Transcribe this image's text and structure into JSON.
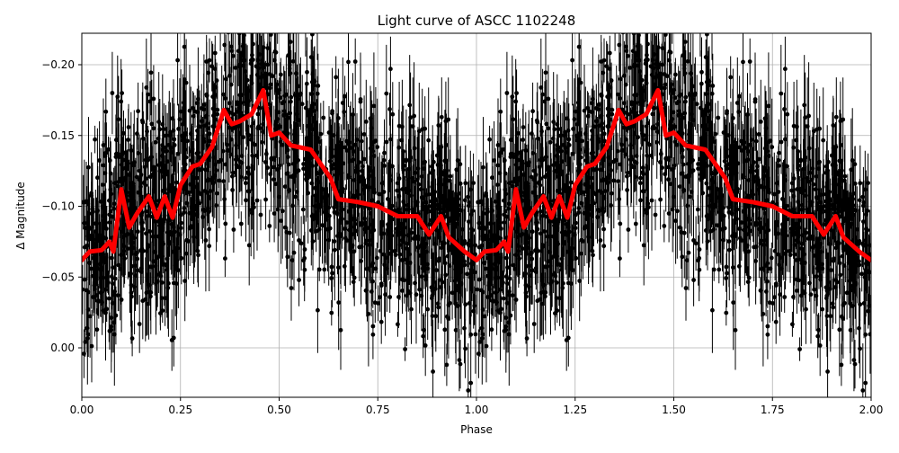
{
  "chart_data": {
    "type": "scatter",
    "title": "Light curve of ASCC 1102248",
    "xlabel": "Phase",
    "ylabel": "Δ Magnitude",
    "xlim": [
      0.0,
      2.0
    ],
    "ylim": [
      0.035,
      -0.222
    ],
    "y_inverted": true,
    "grid": true,
    "x_ticks": [
      0.0,
      0.25,
      0.5,
      0.75,
      1.0,
      1.25,
      1.5,
      1.75,
      2.0
    ],
    "x_tick_labels": [
      "0.00",
      "0.25",
      "0.50",
      "0.75",
      "1.00",
      "1.25",
      "1.50",
      "1.75",
      "2.00"
    ],
    "y_ticks": [
      0.0,
      -0.05,
      -0.1,
      -0.15,
      -0.2
    ],
    "y_tick_labels": [
      "0.00",
      "−0.05",
      "−0.10",
      "−0.15",
      "−0.20"
    ],
    "series": [
      {
        "name": "observations (with error bars)",
        "style": "black points with vertical error bars",
        "color": "#000000",
        "description": "Dense noisy photometry scattered roughly ±0.08 mag around the smoothed curve, phase-folded and repeated over two cycles"
      },
      {
        "name": "smoothed light curve",
        "style": "thick red line",
        "color": "#ff0000",
        "x": [
          0.0,
          0.02,
          0.05,
          0.07,
          0.08,
          0.1,
          0.12,
          0.14,
          0.17,
          0.19,
          0.21,
          0.23,
          0.25,
          0.28,
          0.3,
          0.33,
          0.36,
          0.38,
          0.4,
          0.43,
          0.46,
          0.48,
          0.5,
          0.53,
          0.58,
          0.63,
          0.65,
          0.7,
          0.75,
          0.8,
          0.85,
          0.88,
          0.91,
          0.93,
          0.97,
          1.0,
          1.02,
          1.05,
          1.07,
          1.08,
          1.1,
          1.12,
          1.14,
          1.17,
          1.19,
          1.21,
          1.23,
          1.25,
          1.28,
          1.3,
          1.33,
          1.36,
          1.38,
          1.4,
          1.43,
          1.46,
          1.48,
          1.5,
          1.53,
          1.58,
          1.63,
          1.65,
          1.7,
          1.75,
          1.8,
          1.85,
          1.88,
          1.91,
          1.93,
          1.97,
          2.0
        ],
        "y": [
          -0.062,
          -0.068,
          -0.069,
          -0.075,
          -0.068,
          -0.112,
          -0.085,
          -0.095,
          -0.107,
          -0.092,
          -0.107,
          -0.092,
          -0.115,
          -0.128,
          -0.13,
          -0.142,
          -0.168,
          -0.158,
          -0.16,
          -0.165,
          -0.182,
          -0.15,
          -0.152,
          -0.143,
          -0.14,
          -0.12,
          -0.105,
          -0.103,
          -0.1,
          -0.093,
          -0.093,
          -0.08,
          -0.093,
          -0.078,
          -0.068,
          -0.062,
          -0.068,
          -0.069,
          -0.075,
          -0.068,
          -0.112,
          -0.085,
          -0.095,
          -0.107,
          -0.092,
          -0.107,
          -0.092,
          -0.115,
          -0.128,
          -0.13,
          -0.142,
          -0.168,
          -0.158,
          -0.16,
          -0.165,
          -0.182,
          -0.15,
          -0.152,
          -0.143,
          -0.14,
          -0.12,
          -0.105,
          -0.103,
          -0.1,
          -0.093,
          -0.093,
          -0.08,
          -0.093,
          -0.078,
          -0.068,
          -0.062
        ]
      }
    ]
  }
}
